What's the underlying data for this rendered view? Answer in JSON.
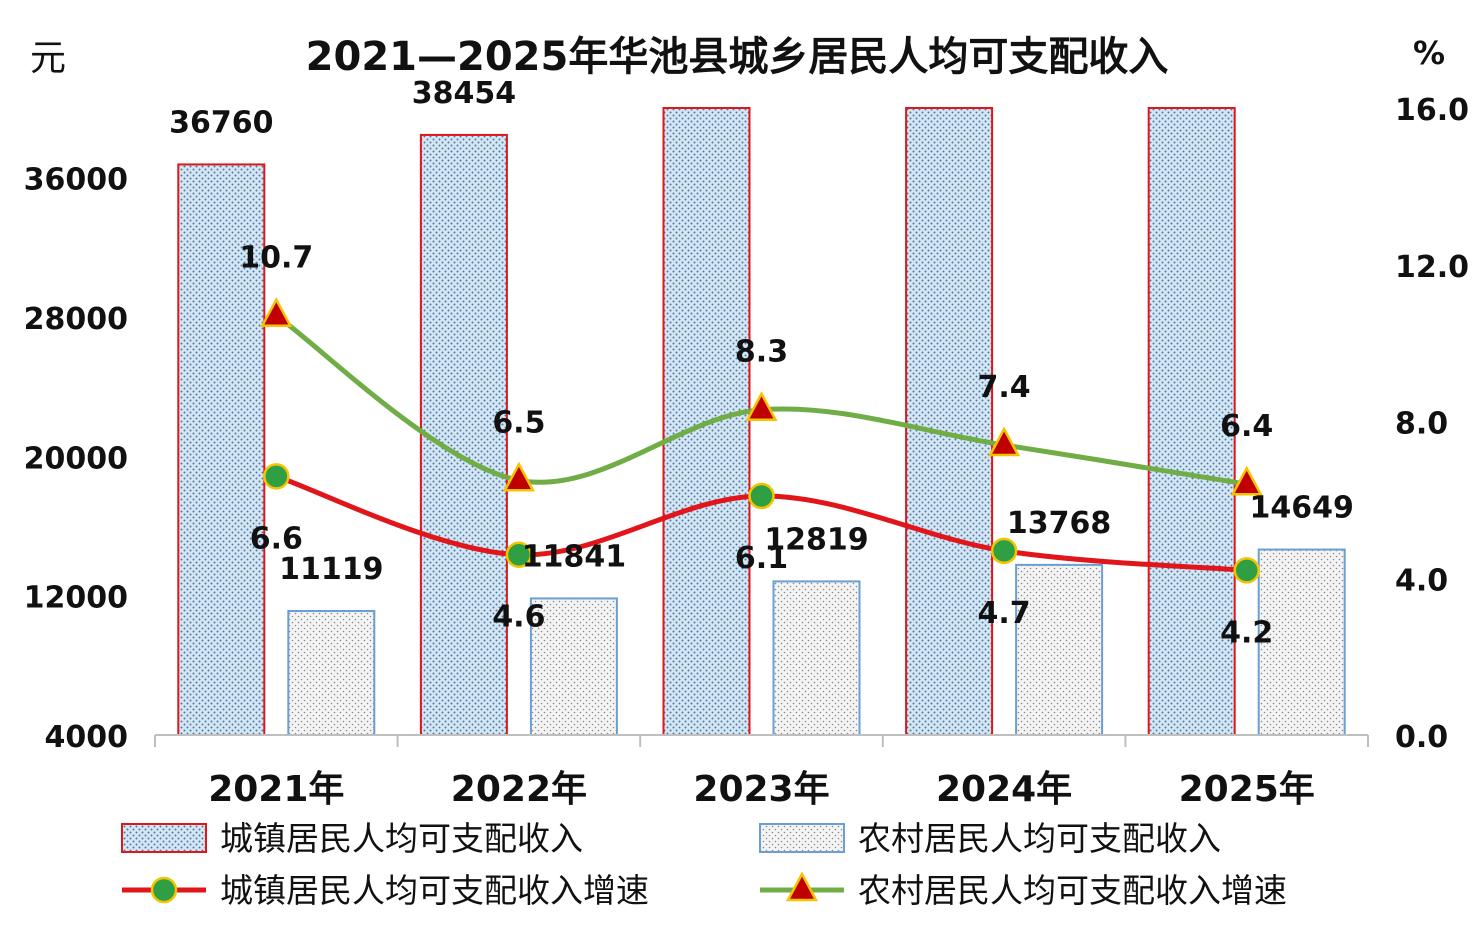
{
  "chart_data": {
    "type": "bar",
    "title": "2021—2025年华池县城乡居民人均可支配收入",
    "y_left_label": "元",
    "y_right_label": "%",
    "categories": [
      "2021年",
      "2022年",
      "2023年",
      "2024年",
      "2025年"
    ],
    "y_left_range": [
      4000,
      40000
    ],
    "y_left_ticks": [
      "4000",
      "12000",
      "20000",
      "28000",
      "36000"
    ],
    "y_right_range": [
      0.0,
      16.0
    ],
    "y_right_ticks": [
      "0.0",
      "4.0",
      "8.0",
      "12.0",
      "16.0"
    ],
    "grid": false,
    "legend_position": "bottom",
    "series": [
      {
        "name": "城镇居民人均可支配收入",
        "kind": "bar",
        "axis": "left",
        "values": [
          36760,
          38454,
          null,
          null,
          null
        ],
        "labels": [
          "36760",
          "38454",
          "",
          "",
          ""
        ],
        "color": "#e0161b"
      },
      {
        "name": "农村居民人均可支配收入",
        "kind": "bar",
        "axis": "left",
        "values": [
          11119,
          11841,
          12819,
          13768,
          14649
        ],
        "labels": [
          "11119",
          "11841",
          "12819",
          "13768",
          "14649"
        ],
        "color": "#6a9fd4"
      },
      {
        "name": "城镇居民人均可支配收入增速",
        "kind": "line",
        "axis": "right",
        "values": [
          6.6,
          4.6,
          6.1,
          4.7,
          4.2
        ],
        "labels": [
          "6.6",
          "4.6",
          "6.1",
          "4.7",
          "4.2"
        ],
        "color": "#e0161b",
        "marker_color": "#2ea043"
      },
      {
        "name": "农村居民人均可支配收入增速",
        "kind": "line",
        "axis": "right",
        "values": [
          10.7,
          6.5,
          8.3,
          7.4,
          6.4
        ],
        "labels": [
          "10.7",
          "6.5",
          "8.3",
          "7.4",
          "6.4"
        ],
        "color": "#70ad47",
        "marker_color": "#c00000"
      }
    ]
  }
}
